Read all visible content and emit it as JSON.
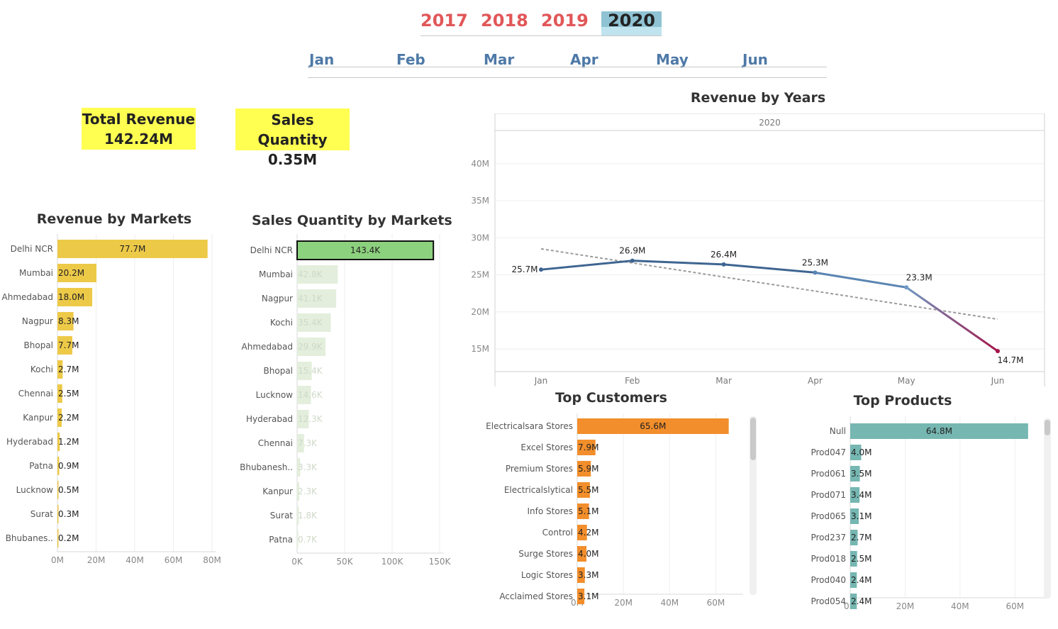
{
  "filters": {
    "years": [
      "2017",
      "2018",
      "2019",
      "2020"
    ],
    "selected_year": "2020",
    "months": [
      "Jan",
      "Feb",
      "Mar",
      "Apr",
      "May",
      "Jun"
    ]
  },
  "kpis": {
    "total_revenue": {
      "label": "Total Revenue",
      "value": "142.24M"
    },
    "sales_quantity": {
      "label": "Sales Quantity",
      "value": "0.35M"
    }
  },
  "colors": {
    "year_text": "#e15759",
    "year_selected_bg": "#8fc3d3",
    "month_text": "#4e79a7",
    "kpi_bg": "#ffff52",
    "revenue_markets_bar": "#edc948",
    "qty_highlight_bar": "#8cd17d",
    "qty_muted_bar": "#e3eedc",
    "customers_bar": "#f28e2b",
    "products_bar": "#76b7b2",
    "line_blue": "#3e6591",
    "line_light_blue": "#6f9ac4",
    "line_red": "#a3154a",
    "trend": "#9b9b9b"
  },
  "chart_data": [
    {
      "id": "revenue-by-markets",
      "type": "bar",
      "orientation": "horizontal",
      "title": "Revenue by Markets",
      "categories": [
        "Delhi NCR",
        "Mumbai",
        "Ahmedabad",
        "Nagpur",
        "Bhopal",
        "Kochi",
        "Chennai",
        "Kanpur",
        "Hyderabad",
        "Patna",
        "Lucknow",
        "Surat",
        "Bhubanes.."
      ],
      "values": [
        77.7,
        20.2,
        18.0,
        8.3,
        7.7,
        2.7,
        2.5,
        2.2,
        1.2,
        0.9,
        0.5,
        0.3,
        0.2
      ],
      "labels": [
        "77.7M",
        "20.2M",
        "18.0M",
        "8.3M",
        "7.7M",
        "2.7M",
        "2.5M",
        "2.2M",
        "1.2M",
        "0.9M",
        "0.5M",
        "0.3M",
        "0.2M"
      ],
      "xlim": [
        0,
        80
      ],
      "ticks": [
        "0M",
        "20M",
        "40M",
        "60M",
        "80M"
      ],
      "tick_values": [
        0,
        20,
        40,
        60,
        80
      ],
      "grid": true
    },
    {
      "id": "sales-quantity-by-markets",
      "type": "bar",
      "orientation": "horizontal",
      "title": "Sales Quantity by Markets",
      "categories": [
        "Delhi NCR",
        "Mumbai",
        "Nagpur",
        "Kochi",
        "Ahmedabad",
        "Bhopal",
        "Lucknow",
        "Hyderabad",
        "Chennai",
        "Bhubanesh..",
        "Kanpur",
        "Surat",
        "Patna"
      ],
      "values": [
        143.4,
        42.8,
        41.1,
        35.4,
        29.9,
        15.4,
        14.6,
        12.3,
        7.3,
        3.3,
        2.3,
        1.8,
        0.7
      ],
      "labels": [
        "143.4K",
        "42.8K",
        "41.1K",
        "35.4K",
        "29.9K",
        "15.4K",
        "14.6K",
        "12.3K",
        "7.3K",
        "3.3K",
        "2.3K",
        "1.8K",
        "0.7K"
      ],
      "highlighted": "Delhi NCR",
      "xlim": [
        0,
        150
      ],
      "ticks": [
        "0K",
        "50K",
        "100K",
        "150K"
      ],
      "tick_values": [
        0,
        50,
        100,
        150
      ],
      "grid": true
    },
    {
      "id": "revenue-by-years",
      "type": "line",
      "title": "Revenue by Years",
      "panel_header": "2020",
      "x": [
        "Jan",
        "Feb",
        "Mar",
        "Apr",
        "May",
        "Jun"
      ],
      "values": [
        25.7,
        26.9,
        26.4,
        25.3,
        23.3,
        14.7
      ],
      "labels": [
        "25.7M",
        "26.9M",
        "26.4M",
        "25.3M",
        "23.3M",
        "14.7M"
      ],
      "trend_line": [
        28.5,
        19.0
      ],
      "ylim": [
        12,
        45
      ],
      "ticks": [
        "15M",
        "20M",
        "25M",
        "30M",
        "35M",
        "40M"
      ],
      "tick_values": [
        15,
        20,
        25,
        30,
        35,
        40
      ],
      "grid": true
    },
    {
      "id": "top-customers",
      "type": "bar",
      "orientation": "horizontal",
      "title": "Top Customers",
      "categories": [
        "Electricalsara Stores",
        "Excel Stores",
        "Premium Stores",
        "Electricalslytical",
        "Info Stores",
        "Control",
        "Surge Stores",
        "Logic Stores",
        "Acclaimed Stores"
      ],
      "values": [
        65.6,
        7.9,
        5.9,
        5.5,
        5.1,
        4.2,
        4.0,
        3.3,
        3.1
      ],
      "labels": [
        "65.6M",
        "7.9M",
        "5.9M",
        "5.5M",
        "5.1M",
        "4.2M",
        "4.0M",
        "3.3M",
        "3.1M"
      ],
      "xlim": [
        0,
        70
      ],
      "ticks": [
        "0M",
        "20M",
        "40M",
        "60M"
      ],
      "tick_values": [
        0,
        20,
        40,
        60
      ],
      "grid": true
    },
    {
      "id": "top-products",
      "type": "bar",
      "orientation": "horizontal",
      "title": "Top Products",
      "categories": [
        "Null",
        "Prod047",
        "Prod061",
        "Prod071",
        "Prod065",
        "Prod237",
        "Prod018",
        "Prod040",
        "Prod054"
      ],
      "values": [
        64.8,
        4.0,
        3.5,
        3.4,
        3.1,
        2.7,
        2.5,
        2.4,
        2.4
      ],
      "labels": [
        "64.8M",
        "4.0M",
        "3.5M",
        "3.4M",
        "3.1M",
        "2.7M",
        "2.5M",
        "2.4M",
        "2.4M"
      ],
      "xlim": [
        0,
        70
      ],
      "ticks": [
        "0M",
        "20M",
        "40M",
        "60M"
      ],
      "tick_values": [
        0,
        20,
        40,
        60
      ],
      "grid": true
    }
  ]
}
